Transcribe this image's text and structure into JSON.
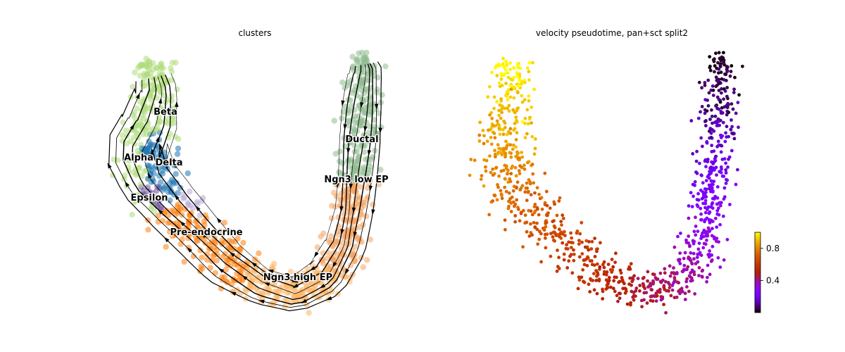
{
  "chart_data": [
    {
      "type": "scatter",
      "title": "clusters",
      "legend": "on data",
      "grid": false,
      "axes": "off",
      "overlay": "velocity streamlines with arrowheads",
      "clusters": [
        {
          "name": "Ductal",
          "color": "#8fbc8f"
        },
        {
          "name": "Ngn3 low EP",
          "color": "#f4a460"
        },
        {
          "name": "Ngn3 high EP",
          "color": "#fdb462"
        },
        {
          "name": "Pre-endocrine",
          "color": "#ff7f0e"
        },
        {
          "name": "Beta",
          "color": "#aedc7a"
        },
        {
          "name": "Alpha",
          "color": "#1f77b4"
        },
        {
          "name": "Delta",
          "color": "#6b4c9a"
        },
        {
          "name": "Epsilon",
          "color": "#b8a9d6"
        }
      ]
    },
    {
      "type": "scatter",
      "title": "velocity pseudotime, pan+sct split2",
      "grid": false,
      "axes": "off",
      "colormap": "gnuplot",
      "colorbar": {
        "ticks": [
          0.4,
          0.8
        ],
        "tick_labels": [
          "0.4",
          "0.8"
        ],
        "range": [
          0.0,
          1.0
        ]
      }
    }
  ]
}
